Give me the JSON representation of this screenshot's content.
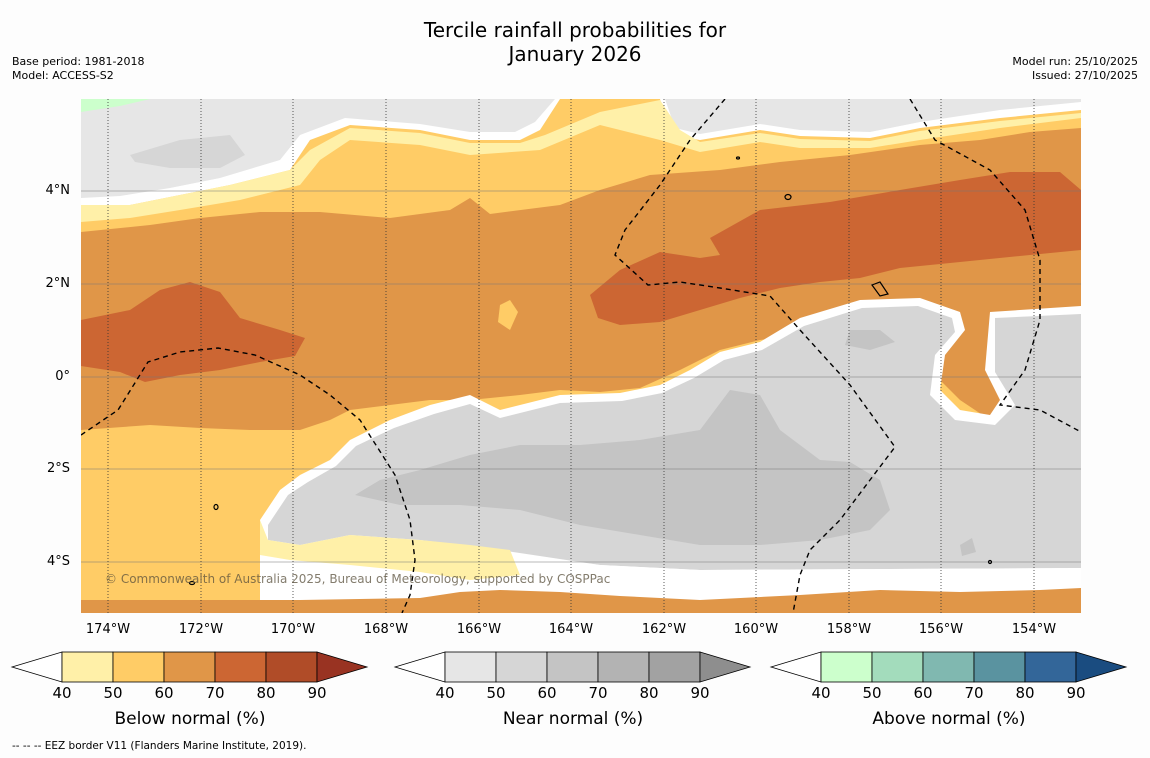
{
  "title": {
    "line1": "Tercile rainfall probabilities for",
    "line2": "January 2026"
  },
  "meta_left": {
    "base_period": "Base period: 1981-2018",
    "model": "Model: ACCESS-S2"
  },
  "meta_right": {
    "model_run": "Model run: 25/10/2025",
    "issued": "Issued: 27/10/2025"
  },
  "axes": {
    "y_labels": [
      "4°N",
      "2°N",
      "0°",
      "2°S",
      "4°S"
    ],
    "x_labels": [
      "174°W",
      "172°W",
      "170°W",
      "168°W",
      "166°W",
      "164°W",
      "162°W",
      "160°W",
      "158°W",
      "156°W",
      "154°W"
    ]
  },
  "copyright": "© Commonwealth of Australia 2025, Bureau of Meteorology, supported by COSPPac",
  "colorbars": [
    {
      "title": "Below normal (%)",
      "ticks": [
        "40",
        "50",
        "60",
        "70",
        "80",
        "90"
      ],
      "colors": [
        "#ffffff",
        "#fff0a8",
        "#ffcc66",
        "#e09648",
        "#cc6633",
        "#b04c28",
        "#993322"
      ]
    },
    {
      "title": "Near normal (%)",
      "ticks": [
        "40",
        "50",
        "60",
        "70",
        "80",
        "90"
      ],
      "colors": [
        "#ffffff",
        "#e6e6e6",
        "#d6d6d6",
        "#c4c4c4",
        "#b3b3b3",
        "#a2a2a2",
        "#8e8e8e"
      ]
    },
    {
      "title": "Above normal (%)",
      "ticks": [
        "40",
        "50",
        "60",
        "70",
        "80",
        "90"
      ],
      "colors": [
        "#ffffff",
        "#ccffcc",
        "#a3dcbc",
        "#80b8b0",
        "#5a93a0",
        "#336699",
        "#1a4c80"
      ]
    }
  ],
  "footnote": "--  --  -- EEZ border V11 (Flanders Marine Institute, 2019)."
}
